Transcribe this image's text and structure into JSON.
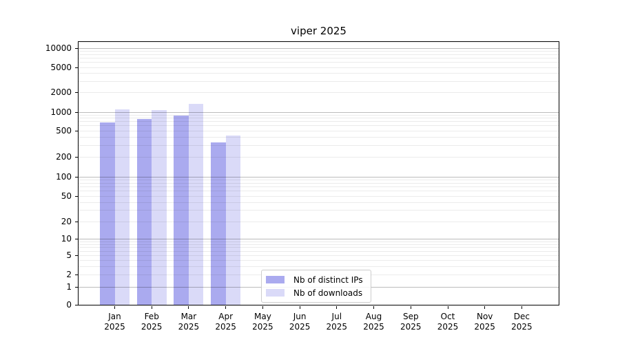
{
  "title": "viper 2025",
  "chart_data": {
    "type": "bar",
    "title": "viper 2025",
    "categories": [
      "Jan 2025",
      "Feb 2025",
      "Mar 2025",
      "Apr 2025",
      "May 2025",
      "Jun 2025",
      "Jul 2025",
      "Aug 2025",
      "Sep 2025",
      "Oct 2025",
      "Nov 2025",
      "Dec 2025"
    ],
    "series": [
      {
        "name": "Nb of distinct IPs",
        "color": "#aaaaef",
        "values": [
          680,
          770,
          880,
          330,
          0,
          0,
          0,
          0,
          0,
          0,
          0,
          0
        ]
      },
      {
        "name": "Nb of downloads",
        "color": "#dadaf8",
        "values": [
          1100,
          1080,
          1340,
          420,
          0,
          0,
          0,
          0,
          0,
          0,
          0,
          0
        ]
      }
    ],
    "xlabel": "",
    "ylabel": "",
    "yscale": "symlog",
    "ylim": [
      0,
      12000
    ],
    "ytick_values": [
      0,
      1,
      2,
      5,
      10,
      20,
      50,
      100,
      200,
      500,
      1000,
      2000,
      5000,
      10000
    ],
    "ytick_labels": [
      "0",
      "1",
      "2",
      "5",
      "10",
      "20",
      "50",
      "100",
      "200",
      "500",
      "1000",
      "2000",
      "5000",
      "10000"
    ],
    "grid": "horizontal",
    "legend": {
      "position": "bottom-center",
      "entries": [
        "Nb of distinct IPs",
        "Nb of downloads"
      ]
    }
  },
  "colors": {
    "major_grid": "#bbbbbb",
    "minor_grid": "#ebebeb",
    "axis": "#000000",
    "legend_border": "#cccccc"
  }
}
